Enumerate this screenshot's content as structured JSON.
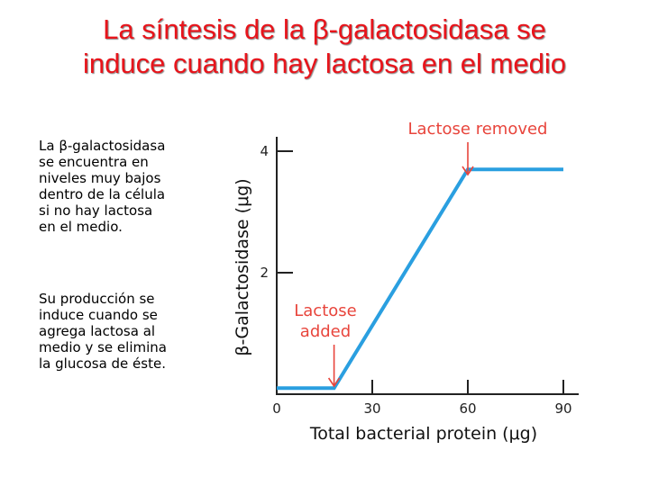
{
  "title": {
    "line1": "La síntesis de la β-galactosidasa se",
    "line2": "induce cuando hay lactosa en el medio"
  },
  "text": {
    "para1": [
      "La β-galactosidasa",
      "se encuentra en",
      "niveles muy bajos",
      "dentro de la célula",
      "si no hay lactosa",
      "en el medio."
    ],
    "para2": [
      "Su producción se",
      "induce cuando se",
      "agrega lactosa al",
      "medio y se elimina",
      "la glucosa de éste."
    ]
  },
  "chart_data": {
    "type": "line",
    "xlabel": "Total bacterial protein (μg)",
    "ylabel": "β-Galactosidase (μg)",
    "x_ticks": [
      0,
      30,
      60,
      90
    ],
    "y_ticks": [
      2,
      4
    ],
    "xlim": [
      0,
      90
    ],
    "ylim": [
      0,
      4
    ],
    "series": [
      {
        "x": [
          0,
          18,
          60,
          90
        ],
        "y": [
          0.1,
          0.1,
          3.7,
          3.7
        ],
        "color": "#2a9fe0"
      }
    ],
    "annotations": {
      "added": {
        "lines": [
          "Lactose",
          "added"
        ],
        "x": 18,
        "color": "#e8453c"
      },
      "removed": {
        "text": "Lactose removed",
        "x": 60,
        "color": "#e8453c"
      }
    },
    "grid": false
  }
}
